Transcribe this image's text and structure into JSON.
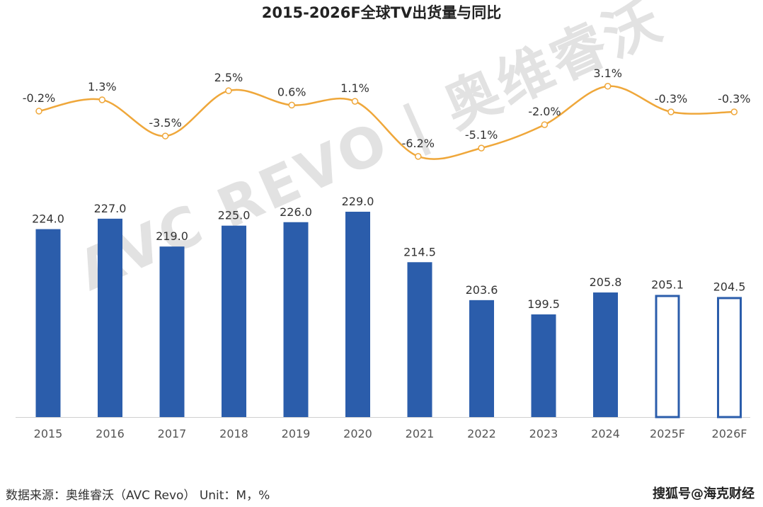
{
  "chart_data": {
    "type": "bar+line",
    "title": "2015-2026F全球TV出货量与同比",
    "categories": [
      "2015",
      "2016",
      "2017",
      "2018",
      "2019",
      "2020",
      "2021",
      "2022",
      "2023",
      "2024",
      "2025F",
      "2026F"
    ],
    "series": [
      {
        "name": "出货量",
        "type": "bar",
        "values": [
          224.0,
          227.0,
          219.0,
          225.0,
          226.0,
          229.0,
          214.5,
          203.6,
          199.5,
          205.8,
          205.1,
          204.5
        ],
        "labels": [
          "224.0",
          "227.0",
          "219.0",
          "225.0",
          "226.0",
          "229.0",
          "214.5",
          "203.6",
          "199.5",
          "205.8",
          "205.1",
          "204.5"
        ],
        "forecast": [
          false,
          false,
          false,
          false,
          false,
          false,
          false,
          false,
          false,
          false,
          true,
          true
        ]
      },
      {
        "name": "同比",
        "type": "line",
        "values": [
          -0.2,
          1.3,
          -3.5,
          2.5,
          0.6,
          1.1,
          -6.2,
          -5.1,
          -2.0,
          3.1,
          -0.3,
          -0.3
        ],
        "labels": [
          "-0.2%",
          "1.3%",
          "-3.5%",
          "2.5%",
          "0.6%",
          "1.1%",
          "-6.2%",
          "-5.1%",
          "-2.0%",
          "3.1%",
          "-0.3%",
          "-0.3%"
        ]
      }
    ],
    "bar_ylim": [
      170,
      235
    ],
    "line_ylim": [
      -9,
      14
    ],
    "grid": false,
    "legend": "none"
  },
  "colors": {
    "bar": "#2B5DAB",
    "line": "#EFA73A"
  },
  "watermark": "AVC REVO | 奥维睿沃",
  "footer": {
    "source": "数据来源：奥维睿沃（AVC Revo） Unit：M，%",
    "credit": "搜狐号@海克财经"
  }
}
